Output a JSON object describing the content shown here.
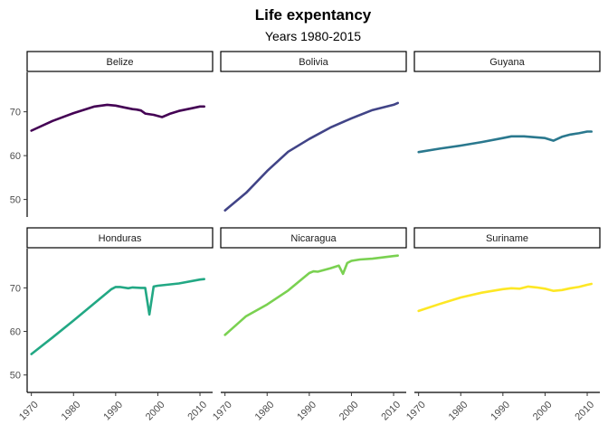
{
  "chart_data": {
    "type": "line",
    "title": "Life expentancy",
    "subtitle": "Years 1980-2015",
    "xlabel": "",
    "ylabel": "",
    "xlim": [
      1969,
      2013
    ],
    "ylim": [
      46,
      79
    ],
    "x_ticks": [
      1970,
      1980,
      1990,
      2000,
      2010
    ],
    "y_ticks": [
      50,
      60,
      70
    ],
    "grid": false,
    "facets": [
      {
        "name": "Belize",
        "color": "#440154",
        "x": [
          1970,
          1975,
          1980,
          1985,
          1988,
          1990,
          1992,
          1994,
          1995,
          1996,
          1997,
          1999,
          2001,
          2003,
          2005,
          2008,
          2010,
          2011
        ],
        "y": [
          65.7,
          67.9,
          69.7,
          71.2,
          71.6,
          71.4,
          71.0,
          70.6,
          70.5,
          70.3,
          69.6,
          69.3,
          68.8,
          69.6,
          70.2,
          70.8,
          71.2,
          71.2
        ]
      },
      {
        "name": "Bolivia",
        "color": "#414487",
        "x": [
          1970,
          1975,
          1980,
          1985,
          1990,
          1995,
          2000,
          2005,
          2010,
          2011
        ],
        "y": [
          47.5,
          51.5,
          56.5,
          60.9,
          63.8,
          66.4,
          68.5,
          70.4,
          71.6,
          72.0
        ]
      },
      {
        "name": "Guyana",
        "color": "#2A788E",
        "x": [
          1970,
          1975,
          1980,
          1985,
          1990,
          1992,
          1995,
          2000,
          2002,
          2004,
          2006,
          2008,
          2010,
          2011
        ],
        "y": [
          60.8,
          61.6,
          62.3,
          63.1,
          64.0,
          64.4,
          64.4,
          64.0,
          63.4,
          64.3,
          64.8,
          65.1,
          65.5,
          65.5
        ]
      },
      {
        "name": "Honduras",
        "color": "#22A884",
        "x": [
          1970,
          1975,
          1980,
          1985,
          1989,
          1990,
          1991,
          1993,
          1994,
          1996,
          1997,
          1998,
          1999,
          2000,
          2005,
          2010,
          2011
        ],
        "y": [
          54.8,
          58.6,
          62.5,
          66.5,
          69.7,
          70.2,
          70.2,
          69.9,
          70.1,
          70.0,
          70.0,
          63.9,
          70.3,
          70.5,
          71.0,
          71.9,
          72.0
        ]
      },
      {
        "name": "Nicaragua",
        "color": "#7AD151",
        "x": [
          1970,
          1975,
          1980,
          1985,
          1990,
          1991,
          1992,
          1995,
          1997,
          1998,
          1999,
          2000,
          2002,
          2005,
          2010,
          2011
        ],
        "y": [
          59.2,
          63.5,
          66.2,
          69.4,
          73.4,
          73.8,
          73.7,
          74.5,
          75.1,
          73.2,
          75.7,
          76.2,
          76.5,
          76.7,
          77.3,
          77.4
        ]
      },
      {
        "name": "Suriname",
        "color": "#FDE725",
        "x": [
          1970,
          1975,
          1980,
          1985,
          1990,
          1992,
          1994,
          1996,
          1998,
          2000,
          2002,
          2004,
          2006,
          2008,
          2010,
          2011
        ],
        "y": [
          64.7,
          66.3,
          67.8,
          68.9,
          69.7,
          69.9,
          69.8,
          70.3,
          70.1,
          69.8,
          69.3,
          69.5,
          69.9,
          70.2,
          70.7,
          70.9
        ]
      }
    ]
  }
}
